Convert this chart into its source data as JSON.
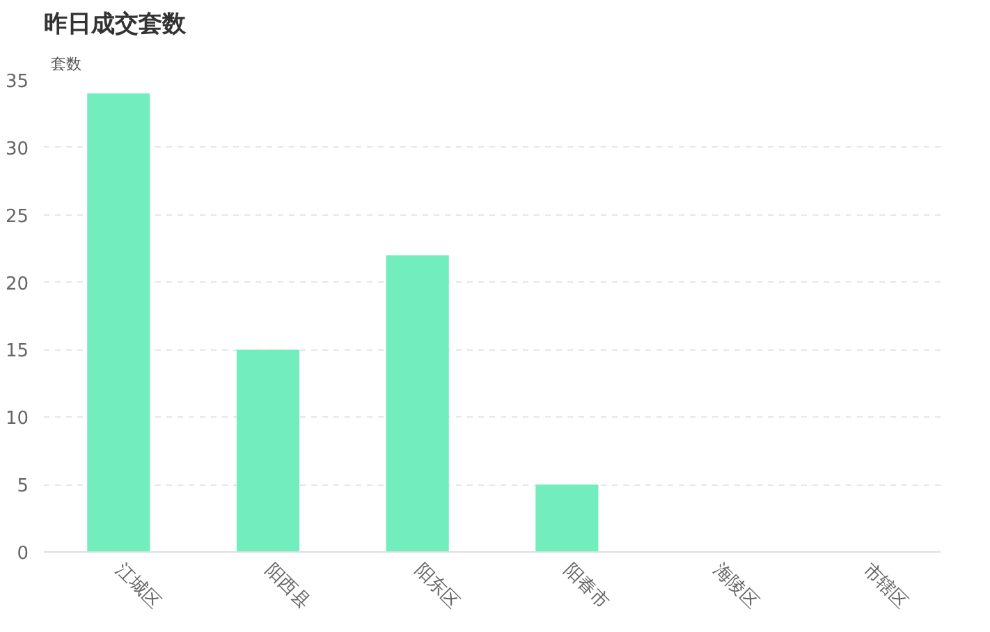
{
  "chart_data": {
    "type": "bar",
    "title": "昨日成交套数",
    "ylabel": "套数",
    "categories": [
      "江城区",
      "阳西县",
      "阳东区",
      "阳春市",
      "海陵区",
      "市辖区"
    ],
    "values": [
      34,
      15,
      22,
      5,
      0,
      0
    ],
    "color": "#72edbd",
    "ylim": [
      0,
      35
    ],
    "yticks": [
      0,
      5,
      10,
      15,
      20,
      25,
      30,
      35
    ],
    "grid": "y"
  }
}
